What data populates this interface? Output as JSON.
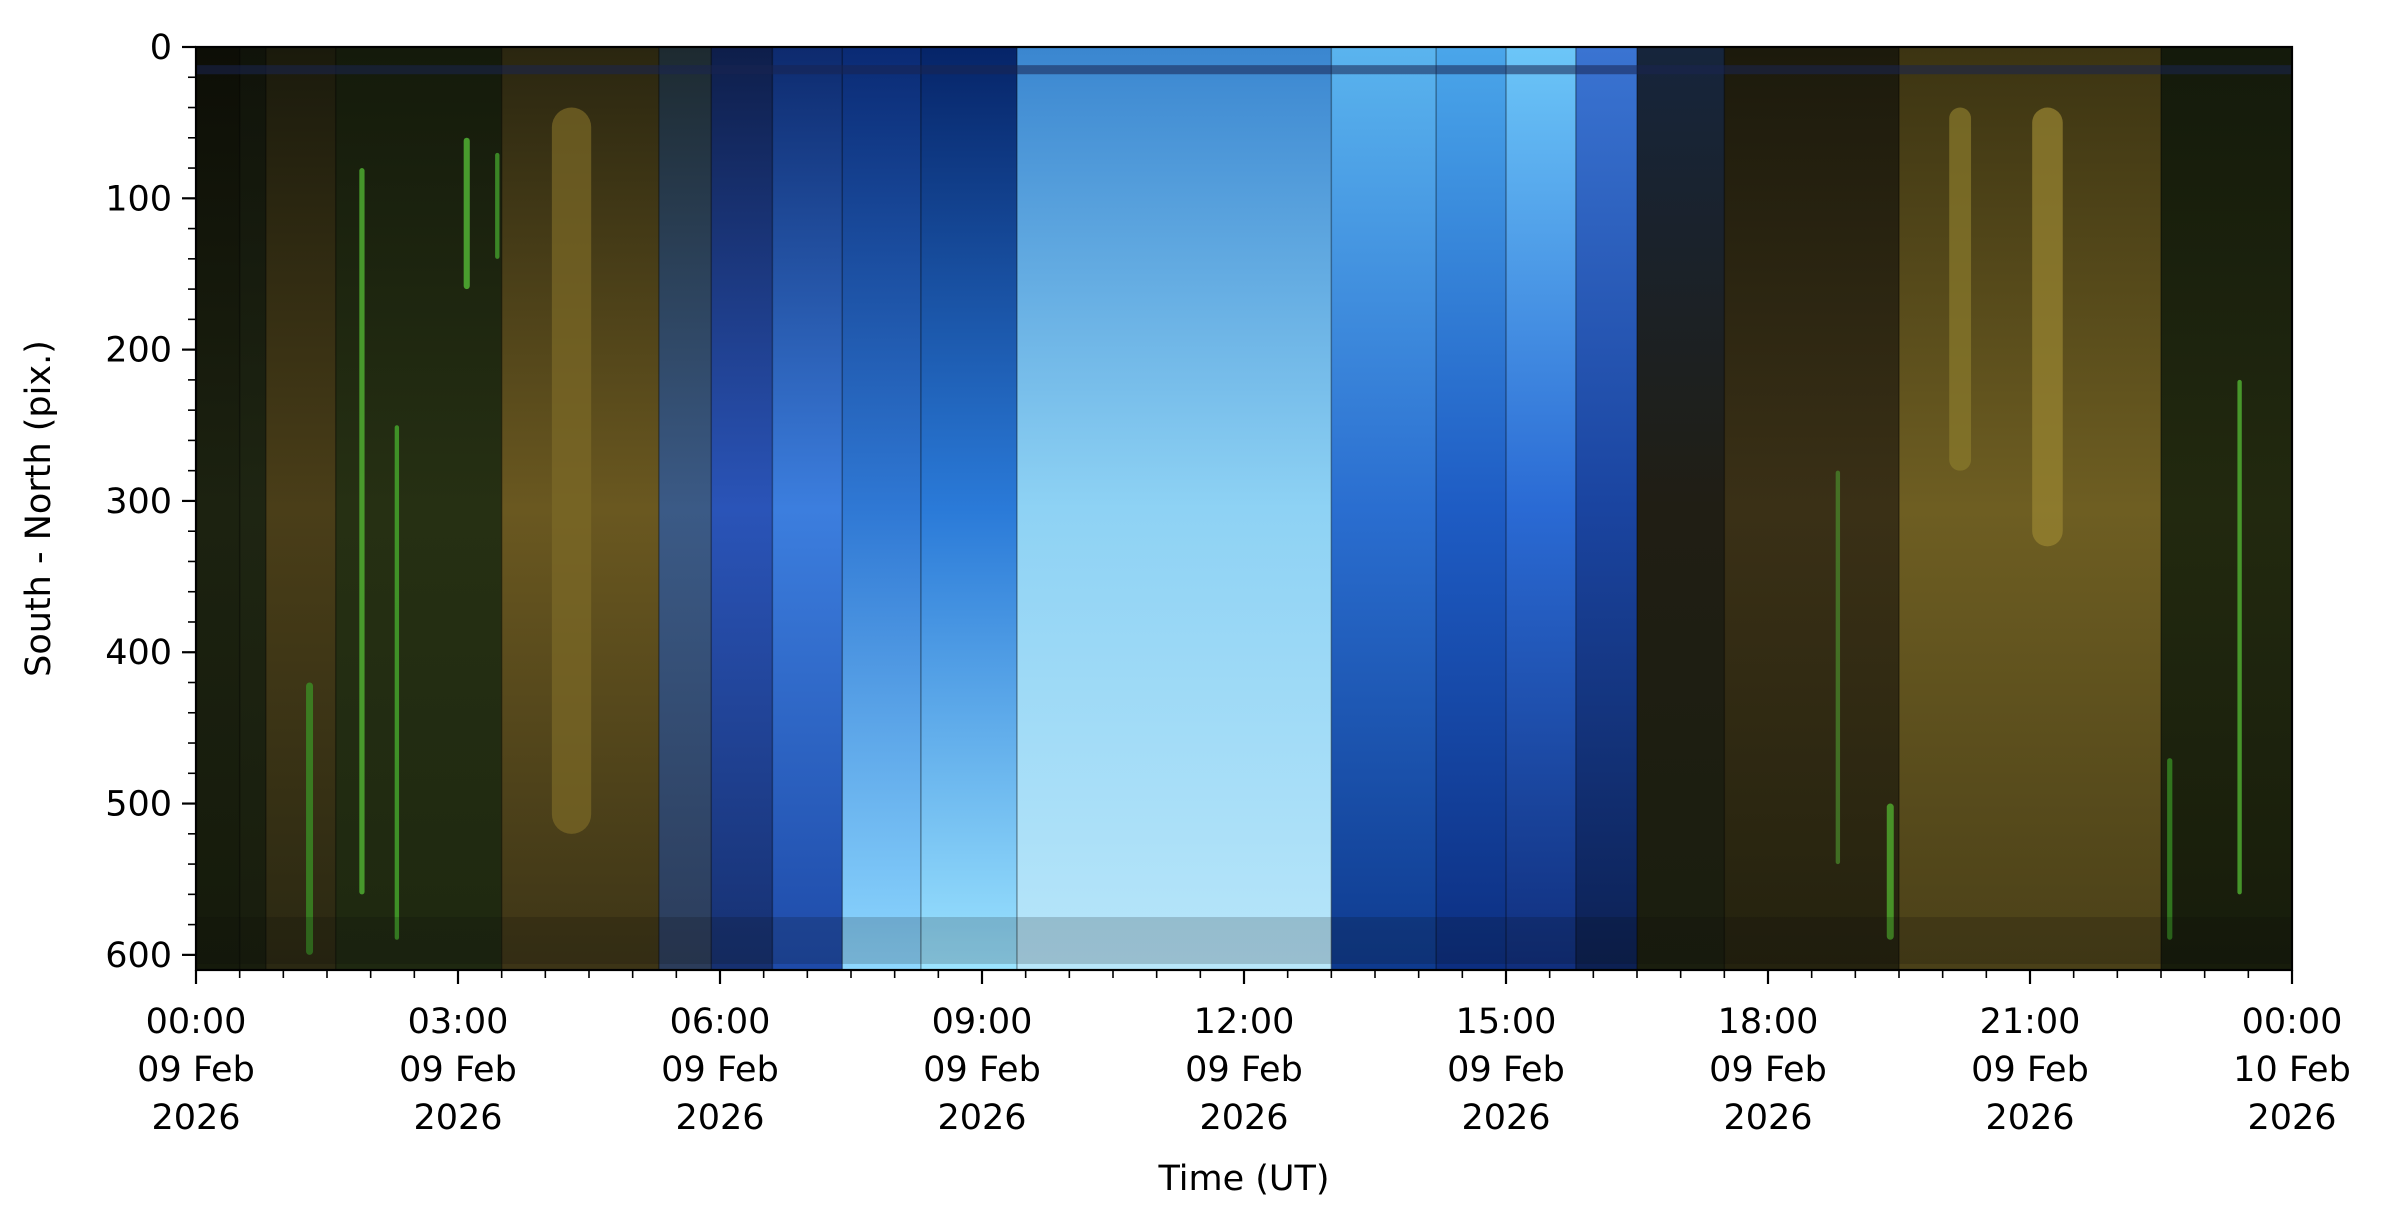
{
  "chart_data": {
    "type": "heatmap",
    "description_kind": "keogram",
    "xlabel": "Time (UT)",
    "ylabel": "South - North (pix.)",
    "xlim_hours": [
      0,
      24
    ],
    "ylim": [
      610,
      0
    ],
    "y_inverted": true,
    "x_ticks": [
      {
        "hours": 0,
        "time": "00:00",
        "date": "09 Feb",
        "year": "2026"
      },
      {
        "hours": 3,
        "time": "03:00",
        "date": "09 Feb",
        "year": "2026"
      },
      {
        "hours": 6,
        "time": "06:00",
        "date": "09 Feb",
        "year": "2026"
      },
      {
        "hours": 9,
        "time": "09:00",
        "date": "09 Feb",
        "year": "2026"
      },
      {
        "hours": 12,
        "time": "12:00",
        "date": "09 Feb",
        "year": "2026"
      },
      {
        "hours": 15,
        "time": "15:00",
        "date": "09 Feb",
        "year": "2026"
      },
      {
        "hours": 18,
        "time": "18:00",
        "date": "09 Feb",
        "year": "2026"
      },
      {
        "hours": 21,
        "time": "21:00",
        "date": "09 Feb",
        "year": "2026"
      },
      {
        "hours": 24,
        "time": "00:00",
        "date": "10 Feb",
        "year": "2026"
      }
    ],
    "x_minor_step_hours": 0.5,
    "y_ticks": [
      0,
      100,
      200,
      300,
      400,
      500,
      600
    ],
    "y_minor_step": 20,
    "segments": [
      {
        "start": 0.0,
        "end": 0.5,
        "colors": [
          "#0d0e06",
          "#1c2210",
          "#151a0b"
        ]
      },
      {
        "start": 0.5,
        "end": 0.8,
        "colors": [
          "#10130a",
          "#1e2512",
          "#181d0d"
        ]
      },
      {
        "start": 0.8,
        "end": 1.6,
        "colors": [
          "#1a1a0c",
          "#4a3e18",
          "#2a2812"
        ]
      },
      {
        "start": 1.6,
        "end": 3.5,
        "colors": [
          "#141a0b",
          "#263013",
          "#1e2810"
        ]
      },
      {
        "start": 3.5,
        "end": 5.3,
        "colors": [
          "#2a2610",
          "#6a5820",
          "#3c3416"
        ]
      },
      {
        "start": 5.3,
        "end": 5.9,
        "colors": [
          "#1d2a30",
          "#3b5a86",
          "#2b3c5a"
        ]
      },
      {
        "start": 5.9,
        "end": 6.6,
        "colors": [
          "#0e1e4a",
          "#2a54b8",
          "#163070"
        ]
      },
      {
        "start": 6.6,
        "end": 7.4,
        "colors": [
          "#0d2a6e",
          "#3c7ede",
          "#1e4aa8"
        ]
      },
      {
        "start": 7.4,
        "end": 8.3,
        "colors": [
          "#0a2a74",
          "#2f78d4",
          "#8ed8ff"
        ]
      },
      {
        "start": 8.3,
        "end": 9.4,
        "colors": [
          "#062468",
          "#2a7ad8",
          "#9ce4ff"
        ]
      },
      {
        "start": 9.4,
        "end": 13.0,
        "colors": [
          "#3a86d0",
          "#8ed2f4",
          "#b8e6fa"
        ]
      },
      {
        "start": 13.0,
        "end": 14.2,
        "colors": [
          "#5ab4ee",
          "#2a6ed0",
          "#0e3a8e"
        ]
      },
      {
        "start": 14.2,
        "end": 15.0,
        "colors": [
          "#4aa6ea",
          "#1e5cc4",
          "#0c2e80"
        ]
      },
      {
        "start": 15.0,
        "end": 15.8,
        "colors": [
          "#6cc6f8",
          "#2a6ad4",
          "#102e7c"
        ]
      },
      {
        "start": 15.8,
        "end": 16.5,
        "colors": [
          "#3a74d2",
          "#1a44a0",
          "#0c2052"
        ]
      },
      {
        "start": 16.5,
        "end": 17.5,
        "colors": [
          "#16253c",
          "#201e14",
          "#1a1e0e"
        ]
      },
      {
        "start": 17.5,
        "end": 19.5,
        "colors": [
          "#1c1a0c",
          "#3a3016",
          "#24220e"
        ]
      },
      {
        "start": 19.5,
        "end": 22.5,
        "colors": [
          "#3c3412",
          "#6e5e22",
          "#4a4018"
        ]
      },
      {
        "start": 22.5,
        "end": 24.0,
        "colors": [
          "#141a0b",
          "#22290f",
          "#171c0b"
        ]
      }
    ],
    "streaks": [
      {
        "hours": 1.9,
        "y0": 80,
        "y1": 560,
        "color": "#58c838",
        "width_h": 0.06
      },
      {
        "hours": 2.3,
        "y0": 250,
        "y1": 590,
        "color": "#4cbc30",
        "width_h": 0.05
      },
      {
        "hours": 3.1,
        "y0": 60,
        "y1": 160,
        "color": "#5cd03c",
        "width_h": 0.07
      },
      {
        "hours": 3.45,
        "y0": 70,
        "y1": 140,
        "color": "#48b030",
        "width_h": 0.05
      },
      {
        "hours": 1.3,
        "y0": 420,
        "y1": 600,
        "color": "#3c9a26",
        "width_h": 0.08
      },
      {
        "hours": 18.8,
        "y0": 280,
        "y1": 540,
        "color": "#4a8c2c",
        "width_h": 0.05
      },
      {
        "hours": 19.4,
        "y0": 500,
        "y1": 590,
        "color": "#56c032",
        "width_h": 0.08
      },
      {
        "hours": 23.4,
        "y0": 220,
        "y1": 560,
        "color": "#58c838",
        "width_h": 0.05
      },
      {
        "hours": 22.6,
        "y0": 470,
        "y1": 590,
        "color": "#3a9a26",
        "width_h": 0.06
      },
      {
        "hours": 20.2,
        "y0": 40,
        "y1": 280,
        "color": "#8a7a2c",
        "width_h": 0.25
      },
      {
        "hours": 21.2,
        "y0": 40,
        "y1": 330,
        "color": "#9a8632",
        "width_h": 0.35
      },
      {
        "hours": 4.3,
        "y0": 40,
        "y1": 520,
        "color": "#7c6a26",
        "width_h": 0.45
      }
    ],
    "horizontal_bands": [
      {
        "y0": 12,
        "y1": 18,
        "color": "#1a2450",
        "opacity": 0.55
      },
      {
        "y0": 575,
        "y1": 606,
        "color": "#0a0a0a",
        "opacity": 0.18
      }
    ]
  }
}
